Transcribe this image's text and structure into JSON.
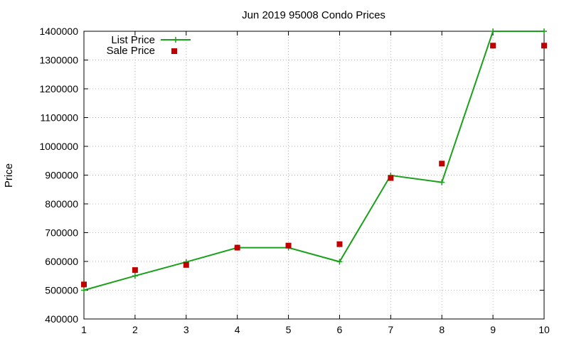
{
  "chart_data": {
    "type": "line",
    "title": "Jun 2019 95008 Condo Prices",
    "xlabel": "",
    "ylabel": "Price",
    "xlim": [
      1,
      10
    ],
    "ylim": [
      400000,
      1400000
    ],
    "x_ticks": [
      "1",
      "2",
      "3",
      "4",
      "5",
      "6",
      "7",
      "8",
      "9",
      "10"
    ],
    "y_ticks": [
      "400000",
      "500000",
      "600000",
      "700000",
      "800000",
      "900000",
      "1000000",
      "1100000",
      "1200000",
      "1300000",
      "1400000"
    ],
    "grid": true,
    "legend_position": "top-left",
    "x": [
      1,
      2,
      3,
      4,
      5,
      6,
      7,
      8,
      9,
      10
    ],
    "series": [
      {
        "name": "List Price",
        "style": "line-with-plus-markers",
        "color": "#1aa01a",
        "values": [
          500000,
          550000,
          598000,
          648000,
          648000,
          599000,
          899000,
          875000,
          1400000,
          1400000
        ]
      },
      {
        "name": "Sale Price",
        "style": "square-markers",
        "color": "#c00000",
        "values": [
          520000,
          570000,
          588000,
          648000,
          655000,
          660000,
          890000,
          940000,
          1350000,
          1350000
        ]
      }
    ]
  }
}
